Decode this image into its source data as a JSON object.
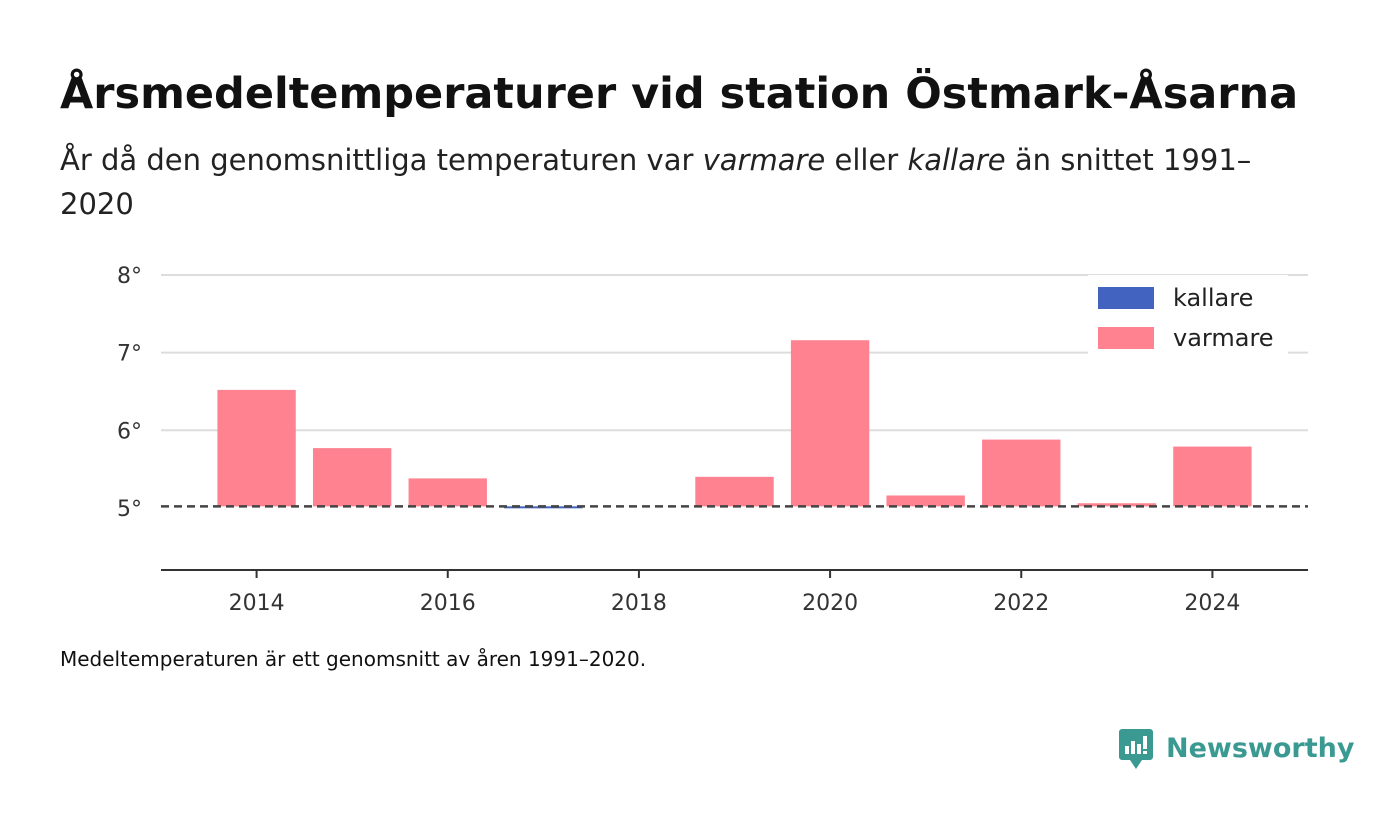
{
  "title": "Årsmedeltemperaturer vid station Östmark-Åsarna",
  "subtitle": {
    "part1": "År då den genomsnittliga temperaturen var ",
    "warmer": "varmare",
    "part2": " eller ",
    "colder": "kallare",
    "part3": " än snittet 1991–2020"
  },
  "footnote": "Medeltemperaturen är ett genomsnitt av åren 1991–2020.",
  "brand": {
    "name": "Newsworthy",
    "icon": "newsworthy-logo-icon",
    "color": "#3a9a92"
  },
  "chart_data": {
    "type": "bar",
    "x": [
      2014,
      2015,
      2016,
      2017,
      2018,
      2019,
      2020,
      2021,
      2022,
      2023,
      2024
    ],
    "values": [
      6.52,
      5.77,
      5.38,
      5.0,
      null,
      5.4,
      7.16,
      5.16,
      5.88,
      5.06,
      5.79
    ],
    "baseline": 5.02,
    "ylim": [
      4.2,
      8.0
    ],
    "xlim": [
      2013.0,
      2025.0
    ],
    "y_ticks": [
      5,
      6,
      7,
      8
    ],
    "y_tick_labels": [
      "5°",
      "6°",
      "7°",
      "8°"
    ],
    "x_ticks": [
      2014,
      2016,
      2018,
      2020,
      2022,
      2024
    ],
    "x_tick_labels": [
      "2014",
      "2016",
      "2018",
      "2020",
      "2022",
      "2024"
    ],
    "series": [
      {
        "name": "kallare",
        "color": "#4263c0"
      },
      {
        "name": "varmare",
        "color": "#ff8291"
      }
    ],
    "grid": true,
    "legend_position": "top-right"
  }
}
